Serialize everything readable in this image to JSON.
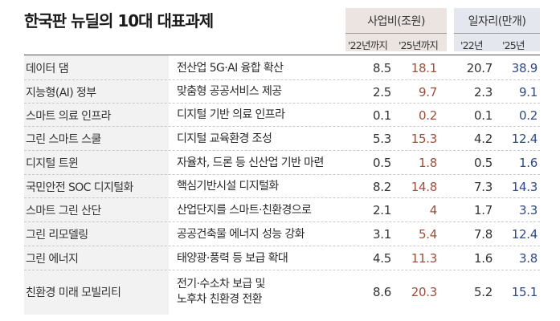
{
  "title": "한국판 뉴딜의 10대 대표과제",
  "header": {
    "business_cost": {
      "label": "사업비(조원)",
      "col_22": "'22년까지",
      "col_25": "'25년까지"
    },
    "jobs": {
      "label": "일자리(만개)",
      "col_22": "'22년",
      "col_25": "'25년"
    }
  },
  "colors": {
    "business_header_bg": "#ece4e0",
    "jobs_header_bg": "#e4e7ee",
    "business_2025_text": "#9b4f3c",
    "jobs_2025_text": "#2e4a86"
  },
  "rows": [
    {
      "name": "데이터 댐",
      "desc": "전산업 5G·AI 융합 확산",
      "desc2": "",
      "b22": "8.5",
      "b25": "18.1",
      "j22": "20.7",
      "j25": "38.9"
    },
    {
      "name": "지능형(AI) 정부",
      "desc": "맞춤형 공공서비스 제공",
      "desc2": "",
      "b22": "2.5",
      "b25": "9.7",
      "j22": "2.3",
      "j25": "9.1"
    },
    {
      "name": "스마트 의료 인프라",
      "desc": "디지털 기반 의료 인프라",
      "desc2": "",
      "b22": "0.1",
      "b25": "0.2",
      "j22": "0.1",
      "j25": "0.2"
    },
    {
      "name": "그린 스마트 스쿨",
      "desc": "디지털 교육환경 조성",
      "desc2": "",
      "b22": "5.3",
      "b25": "15.3",
      "j22": "4.2",
      "j25": "12.4"
    },
    {
      "name": "디지털 트윈",
      "desc": "자율차, 드론 등 신산업 기반 마련",
      "desc2": "",
      "b22": "0.5",
      "b25": "1.8",
      "j22": "0.5",
      "j25": "1.6"
    },
    {
      "name": "국민안전 SOC 디지털화",
      "desc": "핵심기반시설 디지털화",
      "desc2": "",
      "b22": "8.2",
      "b25": "14.8",
      "j22": "7.3",
      "j25": "14.3"
    },
    {
      "name": "스마트 그린 산단",
      "desc": "산업단지를 스마트·친환경으로",
      "desc2": "",
      "b22": "2.1",
      "b25": "4",
      "j22": "1.7",
      "j25": "3.3"
    },
    {
      "name": "그린 리모델링",
      "desc": "공공건축물 에너지 성능 강화",
      "desc2": "",
      "b22": "3.1",
      "b25": "5.4",
      "j22": "7.8",
      "j25": "12.4"
    },
    {
      "name": "그린 에너지",
      "desc": "태양광·풍력 등 보급 확대",
      "desc2": "",
      "b22": "4.5",
      "b25": "11.3",
      "j22": "1.6",
      "j25": "3.8"
    },
    {
      "name": "친환경 미래 모빌리티",
      "desc": "전기·수소차 보급 및",
      "desc2": "노후차 친환경 전환",
      "b22": "8.6",
      "b25": "20.3",
      "j22": "5.2",
      "j25": "15.1"
    }
  ]
}
